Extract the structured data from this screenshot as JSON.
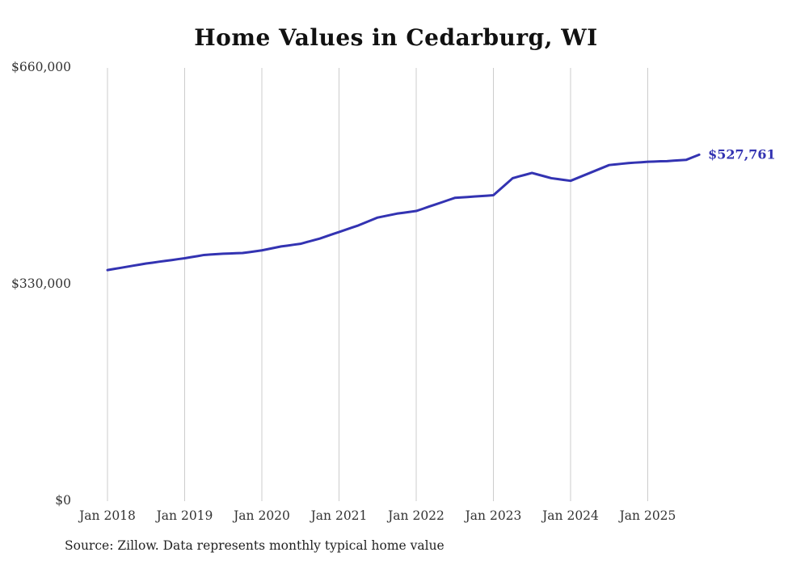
{
  "page": {
    "background": "#ffffff"
  },
  "chart_data": {
    "type": "line",
    "title": "Home Values in Cedarburg, WI",
    "series_name": "Typical home value (monthly)",
    "x_start": "2018-01",
    "x_interval": "month",
    "x_tick_labels": [
      "Jan 2018",
      "Jan 2019",
      "Jan 2020",
      "Jan 2021",
      "Jan 2022",
      "Jan 2023",
      "Jan 2024",
      "Jan 2025"
    ],
    "y_ticks": [
      {
        "value": 0,
        "label": "$0"
      },
      {
        "value": 330000,
        "label": "$330,000"
      },
      {
        "value": 660000,
        "label": "$660,000"
      }
    ],
    "ylim": [
      0,
      660000
    ],
    "grid": "vertical-yearly",
    "legend": "none",
    "line_color": "#3333b2",
    "grid_color": "#cccccc",
    "tick_color": "#333333",
    "values": [
      352000,
      353700,
      355300,
      357000,
      358700,
      360300,
      362000,
      363300,
      364700,
      366000,
      367300,
      368700,
      370000,
      371700,
      373300,
      375000,
      375700,
      376300,
      377000,
      377300,
      377700,
      378000,
      379300,
      380700,
      382000,
      384000,
      386000,
      388000,
      389300,
      390700,
      392000,
      394700,
      397300,
      400000,
      403300,
      406700,
      410000,
      413300,
      416700,
      420000,
      424000,
      428000,
      432000,
      434000,
      436000,
      438000,
      439300,
      440700,
      442000,
      445300,
      448700,
      452000,
      455300,
      458700,
      462000,
      462700,
      463300,
      464000,
      464700,
      465300,
      466000,
      474700,
      483300,
      492000,
      494700,
      497300,
      500000,
      497300,
      494700,
      492000,
      490700,
      489300,
      488000,
      492000,
      496000,
      500000,
      504000,
      508000,
      512000,
      513000,
      514000,
      515000,
      515700,
      516300,
      517000,
      517300,
      517700,
      518000,
      518700,
      519300,
      520000,
      523900,
      527761
    ],
    "end_value": 527761,
    "end_label": "$527,761"
  },
  "footer": {
    "source_note": "Source: Zillow. Data represents monthly typical home value"
  }
}
